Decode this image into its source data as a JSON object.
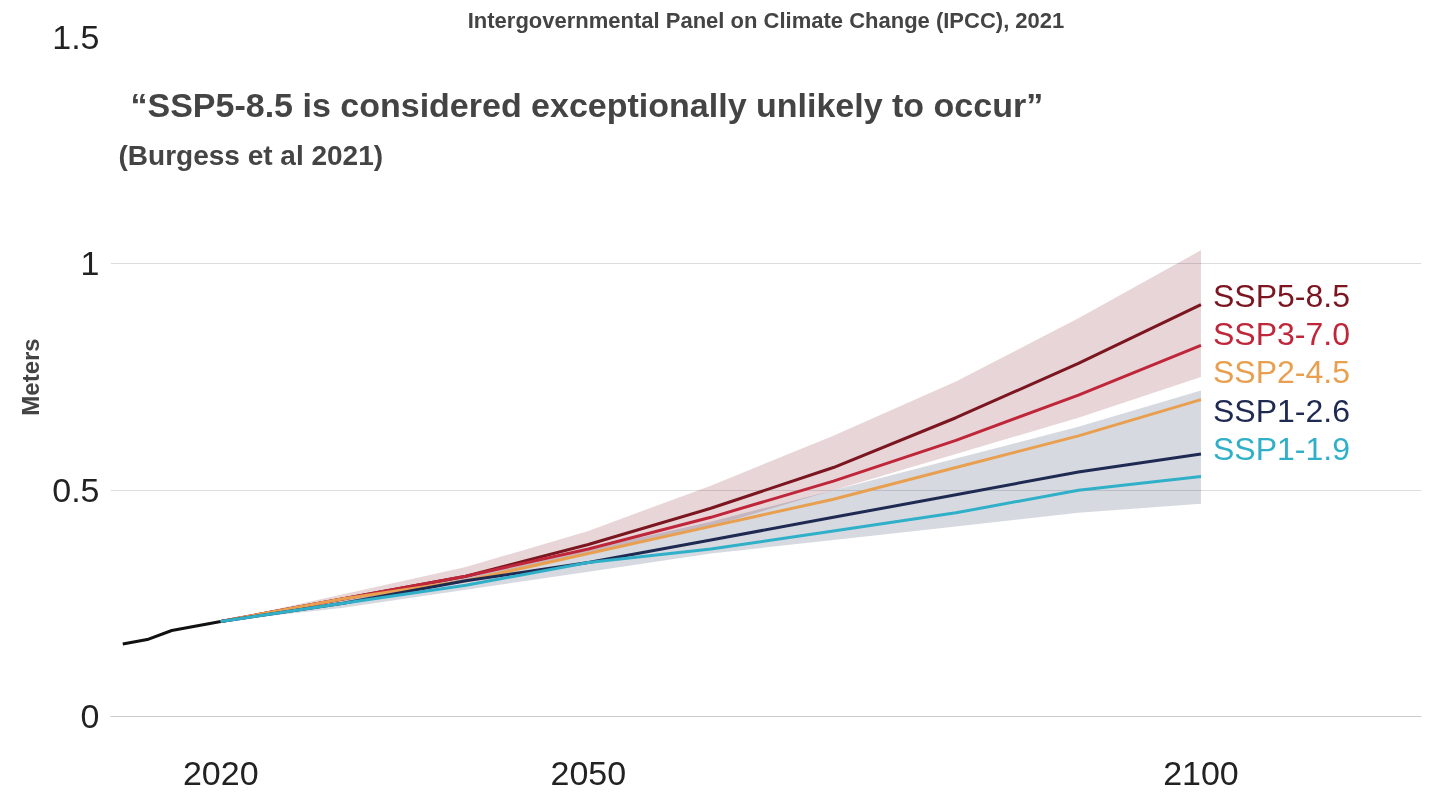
{
  "chart_data": {
    "type": "line",
    "title": "Intergovernmental Panel on Climate Change (IPCC), 2021",
    "ylabel": "Meters",
    "annotations": [
      "“SSP5-8.5 is considered exceptionally unlikely to occur”",
      "(Burgess et al 2021)"
    ],
    "x": [
      2020,
      2030,
      2040,
      2050,
      2060,
      2070,
      2080,
      2090,
      2100
    ],
    "series": [
      {
        "color": "#111111",
        "x": [
          2012,
          2014,
          2016,
          2018,
          2020
        ],
        "values": [
          0.16,
          0.17,
          0.19,
          0.2,
          0.21
        ]
      },
      {
        "name": "SSP5-8.5",
        "color": "#7b1520",
        "values": [
          0.21,
          0.26,
          0.31,
          0.38,
          0.46,
          0.55,
          0.66,
          0.78,
          0.91
        ],
        "lower": [
          0.21,
          0.25,
          0.3,
          0.36,
          0.42,
          0.5,
          0.58,
          0.66,
          0.75
        ],
        "upper": [
          0.21,
          0.27,
          0.33,
          0.41,
          0.51,
          0.62,
          0.74,
          0.88,
          1.03
        ]
      },
      {
        "name": "SSP3-7.0",
        "color": "#c0263a",
        "values": [
          0.21,
          0.26,
          0.31,
          0.37,
          0.44,
          0.52,
          0.61,
          0.71,
          0.82
        ]
      },
      {
        "name": "SSP2-4.5",
        "color": "#e8a050",
        "values": [
          0.21,
          0.26,
          0.3,
          0.36,
          0.42,
          0.48,
          0.55,
          0.62,
          0.7
        ]
      },
      {
        "name": "SSP1-2.6",
        "color": "#1f2a52",
        "values": [
          0.21,
          0.25,
          0.3,
          0.34,
          0.39,
          0.44,
          0.49,
          0.54,
          0.58
        ],
        "lower": [
          0.21,
          0.24,
          0.28,
          0.32,
          0.36,
          0.39,
          0.42,
          0.45,
          0.47
        ],
        "upper": [
          0.21,
          0.26,
          0.31,
          0.37,
          0.43,
          0.5,
          0.57,
          0.64,
          0.72
        ]
      },
      {
        "name": "SSP1-1.9",
        "color": "#2fb0c8",
        "values": [
          0.21,
          0.25,
          0.29,
          0.34,
          0.37,
          0.41,
          0.45,
          0.5,
          0.53
        ]
      }
    ],
    "xlim": [
      2011,
      2118
    ],
    "xticks": [
      2020,
      2050,
      2100
    ],
    "ylim": [
      0,
      1.5
    ],
    "yticks": [
      0,
      {
        "value": 0.5,
        "label": "0.5"
      },
      1,
      {
        "value": 1.5,
        "label": "1.5"
      }
    ],
    "grid": "y",
    "line_style": "solid"
  }
}
